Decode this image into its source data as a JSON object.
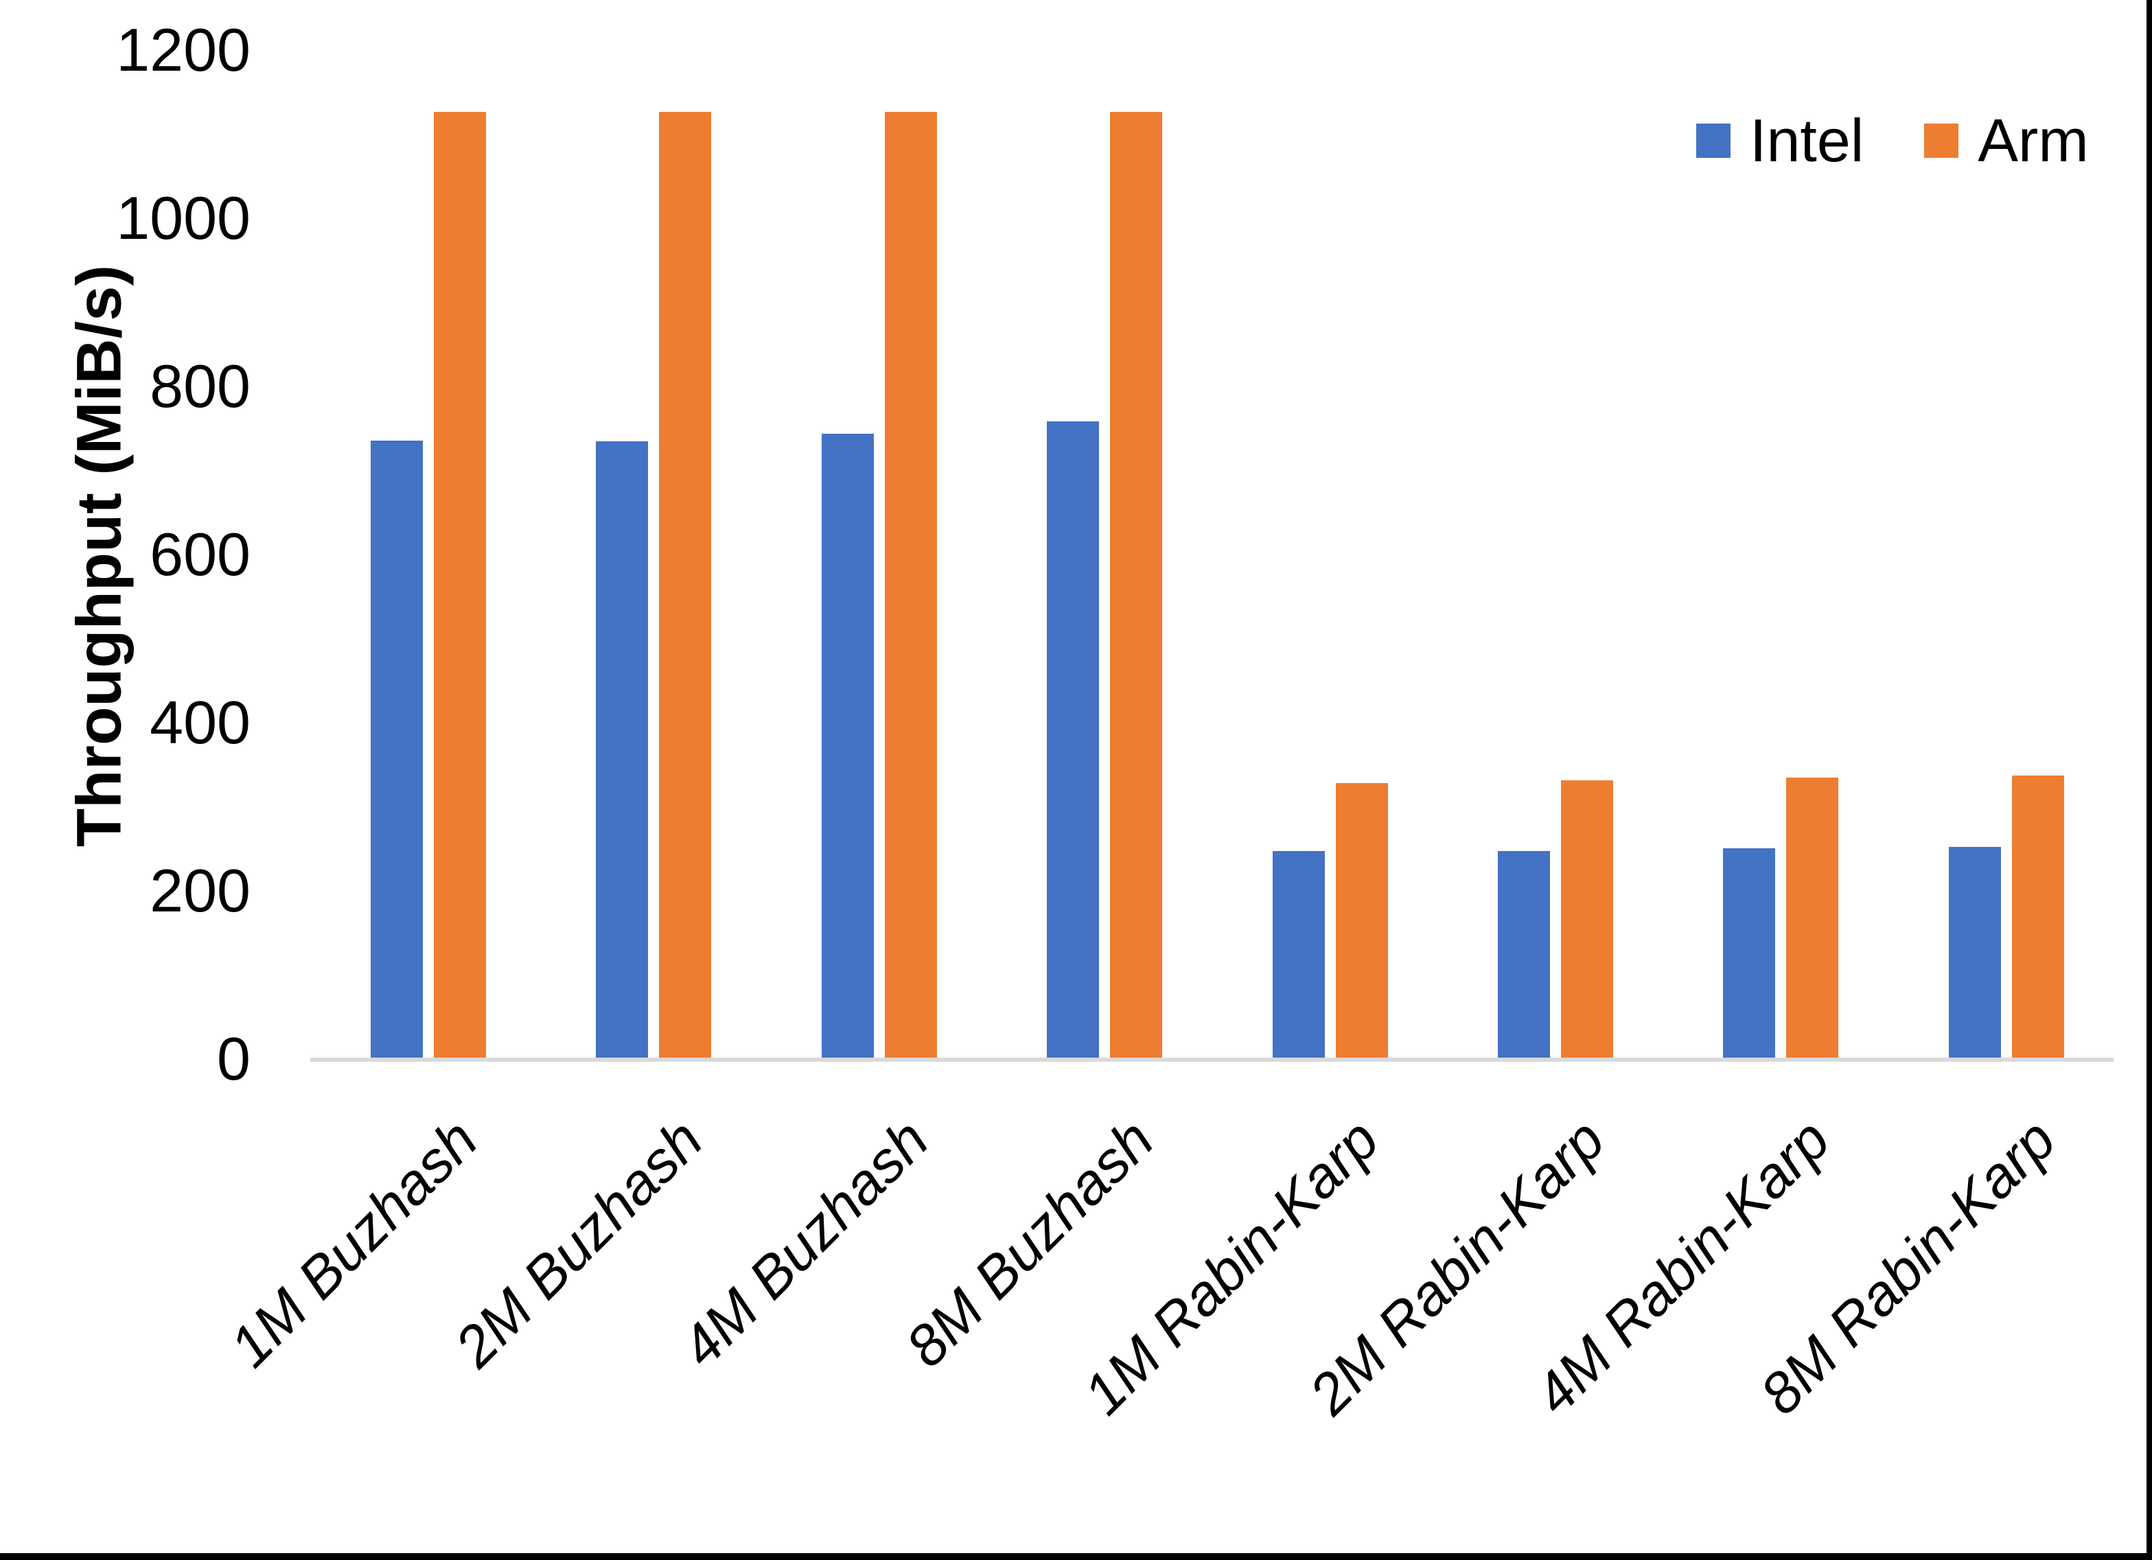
{
  "chart_data": {
    "type": "bar",
    "title": "",
    "xlabel": "",
    "ylabel": "Throughput (MiB/s)",
    "ylim": [
      0,
      1200
    ],
    "yticks": [
      0,
      200,
      400,
      600,
      800,
      1000,
      1200
    ],
    "grid": false,
    "legend_position": "top-right",
    "categories": [
      "1M Buzhash",
      "2M Buzhash",
      "4M Buzhash",
      "8M Buzhash",
      "1M Rabin-Karp",
      "2M Rabin-Karp",
      "4M Rabin-Karp",
      "8M Rabin-Karp"
    ],
    "series": [
      {
        "name": "Intel",
        "color": "#4472C4",
        "values": [
          737,
          736,
          745,
          760,
          249,
          249,
          252,
          254
        ]
      },
      {
        "name": "Arm",
        "color": "#ED7D31",
        "values": [
          1128,
          1128,
          1128,
          1128,
          330,
          333,
          336,
          339
        ]
      }
    ]
  },
  "colors": {
    "axis_line": "#D9D9D9",
    "text": "#000000",
    "background": "#FFFFFF",
    "edge_border": "#000000"
  }
}
